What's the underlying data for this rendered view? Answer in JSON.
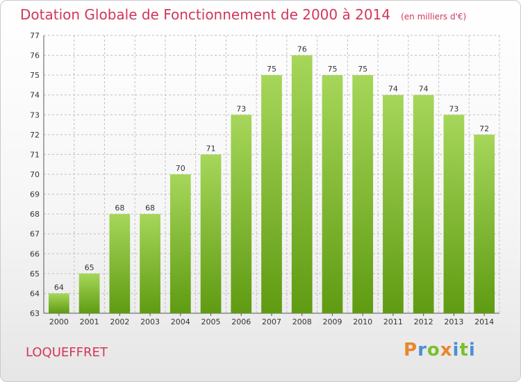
{
  "header": {
    "title": "Dotation Globale de Fonctionnement de 2000 à 2014",
    "unit": "(en milliers d'€)"
  },
  "footer": {
    "commune": "LOQUEFFRET",
    "brand_letters": [
      {
        "char": "P",
        "color": "#e8872a"
      },
      {
        "char": "r",
        "color": "#4a8fd6"
      },
      {
        "char": "o",
        "color": "#7bbf2e"
      },
      {
        "char": "x",
        "color": "#e8872a"
      },
      {
        "char": "i",
        "color": "#4a8fd6"
      },
      {
        "char": "t",
        "color": "#7bbf2e"
      },
      {
        "char": "i",
        "color": "#4a8fd6"
      }
    ]
  },
  "colors": {
    "accent": "#d2365a",
    "bar_light": "#a6d65a",
    "bar_dark": "#5f9b12",
    "grid": "#bfbfbf"
  },
  "chart_data": {
    "type": "bar",
    "title": "Dotation Globale de Fonctionnement de 2000 à 2014",
    "subtitle": "(en milliers d'€)",
    "categories": [
      "2000",
      "2001",
      "2002",
      "2003",
      "2004",
      "2005",
      "2006",
      "2007",
      "2008",
      "2009",
      "2010",
      "2011",
      "2012",
      "2013",
      "2014"
    ],
    "values": [
      64,
      65,
      68,
      68,
      70,
      71,
      73,
      75,
      76,
      75,
      75,
      74,
      74,
      73,
      72
    ],
    "ylim": [
      63,
      77
    ],
    "yticks": [
      63,
      64,
      65,
      66,
      67,
      68,
      69,
      70,
      71,
      72,
      73,
      74,
      75,
      76,
      77
    ],
    "grid": true,
    "data_labels": true
  }
}
